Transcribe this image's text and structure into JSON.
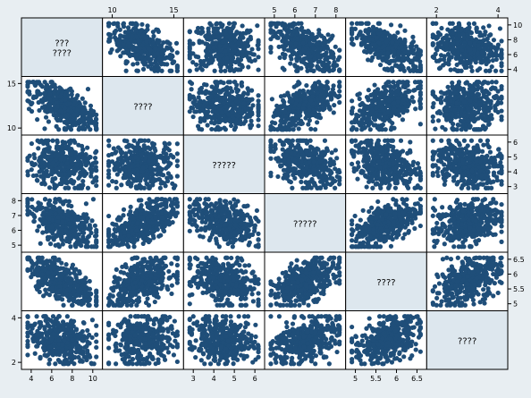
{
  "chart_data": {
    "type": "scatter",
    "subtype": "scatterplot-matrix",
    "marker_color": "#1f4e79",
    "background_color": "#e8eef2",
    "diagonal_fill": "#dde7ee",
    "variables": [
      {
        "label": "??? ????",
        "range": [
          3.5,
          10.5
        ],
        "ticks": [
          4,
          6,
          8,
          10
        ]
      },
      {
        "label": "????",
        "range": [
          8.6,
          15.3
        ],
        "ticks": [
          10,
          15
        ]
      },
      {
        "label": "?????",
        "range": [
          3.0,
          6.5
        ],
        "ticks": [
          3,
          4,
          5,
          6
        ]
      },
      {
        "label": "?????",
        "range": [
          4.9,
          6.4
        ],
        "ticks": [
          5,
          6,
          7,
          8
        ]
      },
      {
        "label": "????",
        "range": [
          4.7,
          6.6
        ],
        "ticks": [
          5,
          5.5,
          6,
          6.5
        ]
      },
      {
        "label": "????",
        "range": [
          1.9,
          4.5
        ],
        "ticks": [
          2,
          4
        ]
      }
    ],
    "top_axis_ticks": {
      "1": [
        "10",
        "15"
      ],
      "3": [
        "5",
        "6",
        "7",
        "8"
      ],
      "5": [
        "2",
        "4"
      ]
    },
    "right_axis_ticks": {
      "0": [
        "10",
        "8",
        "6",
        "4"
      ],
      "2": [
        "6",
        "5",
        "4",
        "3"
      ],
      "4": [
        "6.5",
        "6",
        "5.5",
        "5"
      ]
    },
    "left_axis_ticks": {
      "1": [
        "15",
        "10"
      ],
      "3": [
        "8",
        "7",
        "6",
        "5"
      ],
      "5": [
        "4",
        "2"
      ]
    },
    "bottom_axis_ticks": {
      "0": [
        "4",
        "6",
        "8",
        "10"
      ],
      "2": [
        "3",
        "4",
        "5",
        "6"
      ],
      "4": [
        "5",
        "5.5",
        "6",
        "6.5"
      ]
    }
  }
}
